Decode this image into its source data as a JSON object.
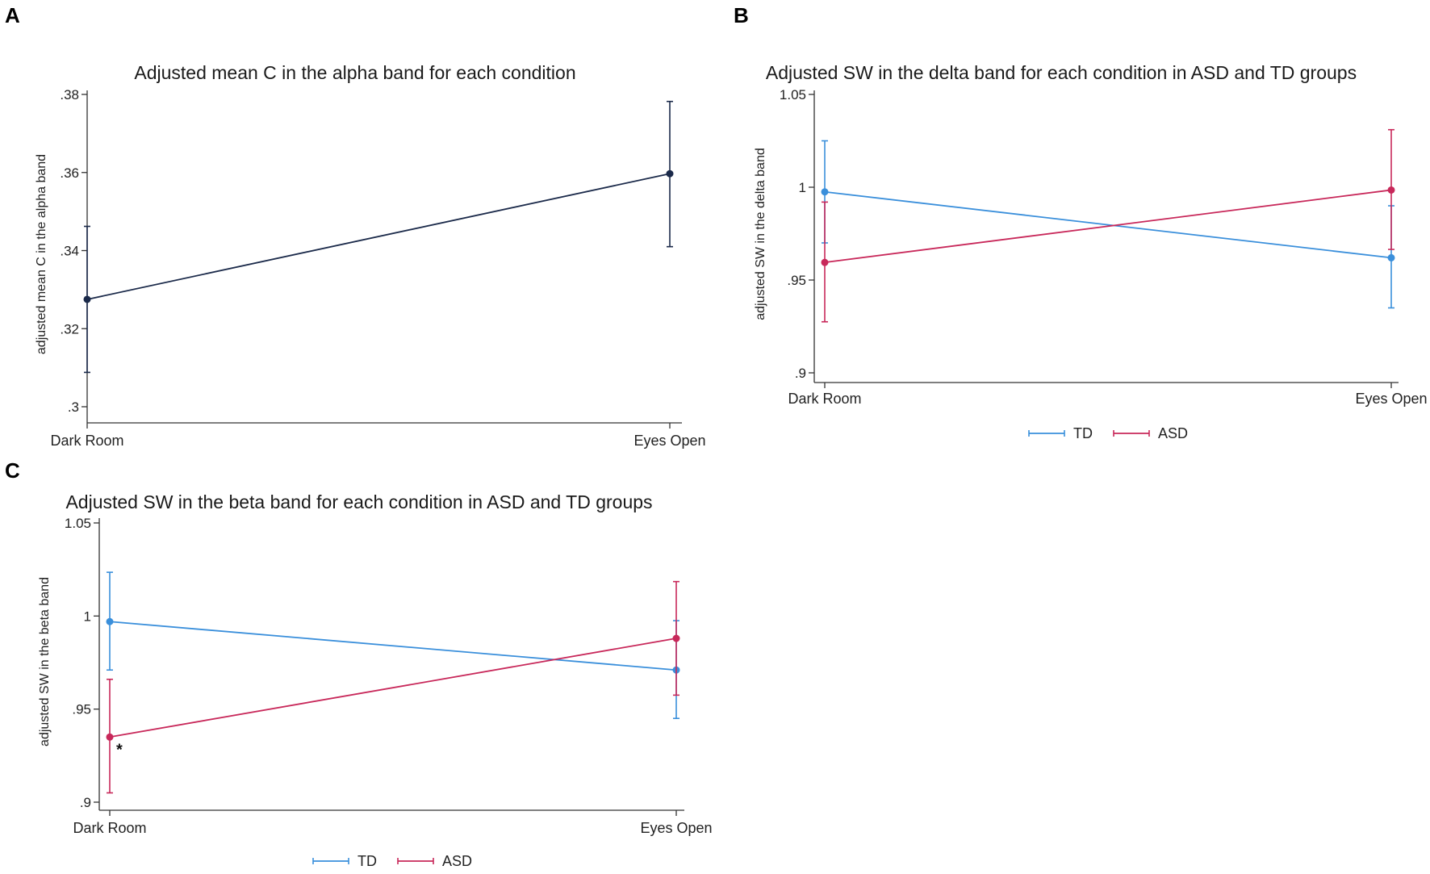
{
  "chart_data": [
    {
      "panel": "A",
      "type": "line",
      "title": "Adjusted mean C in the alpha band for each condition",
      "xlabel": "",
      "ylabel": "adjusted mean C in the alpha band",
      "categories": [
        "Dark Room",
        "Eyes Open"
      ],
      "ylim": [
        0.3,
        0.38
      ],
      "yticks": [
        0.3,
        0.32,
        0.34,
        0.36,
        0.38
      ],
      "ytick_labels": [
        ".3",
        ".32",
        ".34",
        ".36",
        ".38"
      ],
      "legend": [],
      "series": [
        {
          "name": "",
          "color": "#1b2a4a",
          "values": [
            0.3275,
            0.3597
          ],
          "ci_low": [
            0.3088,
            0.341
          ],
          "ci_high": [
            0.3462,
            0.3782
          ]
        }
      ],
      "annotations": []
    },
    {
      "panel": "B",
      "type": "line",
      "title": "Adjusted SW in the delta band for each condition in ASD and TD groups",
      "xlabel": "",
      "ylabel": "adjusted SW in the delta band",
      "categories": [
        "Dark Room",
        "Eyes Open"
      ],
      "ylim": [
        0.9,
        1.05
      ],
      "yticks": [
        0.9,
        0.95,
        1.0,
        1.05
      ],
      "ytick_labels": [
        ".9",
        ".95",
        "1",
        "1.05"
      ],
      "legend": [
        "TD",
        "ASD"
      ],
      "legend_position": "bottom",
      "series": [
        {
          "name": "TD",
          "color": "#3a8fdb",
          "values": [
            0.9975,
            0.962
          ],
          "ci_low": [
            0.97,
            0.935
          ],
          "ci_high": [
            1.025,
            0.99
          ]
        },
        {
          "name": "ASD",
          "color": "#c8285a",
          "values": [
            0.9595,
            0.9985
          ],
          "ci_low": [
            0.9275,
            0.9665
          ],
          "ci_high": [
            0.992,
            1.031
          ]
        }
      ],
      "annotations": []
    },
    {
      "panel": "C",
      "type": "line",
      "title": "Adjusted SW in the beta band for each condition in ASD and TD groups",
      "xlabel": "",
      "ylabel": "adjusted SW in the beta band",
      "categories": [
        "Dark Room",
        "Eyes Open"
      ],
      "ylim": [
        0.9,
        1.05
      ],
      "yticks": [
        0.9,
        0.95,
        1.0,
        1.05
      ],
      "ytick_labels": [
        ".9",
        ".95",
        "1",
        "1.05"
      ],
      "legend": [
        "TD",
        "ASD"
      ],
      "legend_position": "bottom",
      "series": [
        {
          "name": "TD",
          "color": "#3a8fdb",
          "values": [
            0.997,
            0.971
          ],
          "ci_low": [
            0.971,
            0.945
          ],
          "ci_high": [
            1.0235,
            0.9975
          ]
        },
        {
          "name": "ASD",
          "color": "#c8285a",
          "values": [
            0.935,
            0.988
          ],
          "ci_low": [
            0.905,
            0.9575
          ],
          "ci_high": [
            0.966,
            1.0185
          ]
        }
      ],
      "annotations": [
        {
          "text": "*",
          "category": "Dark Room",
          "series": "ASD"
        }
      ]
    }
  ]
}
